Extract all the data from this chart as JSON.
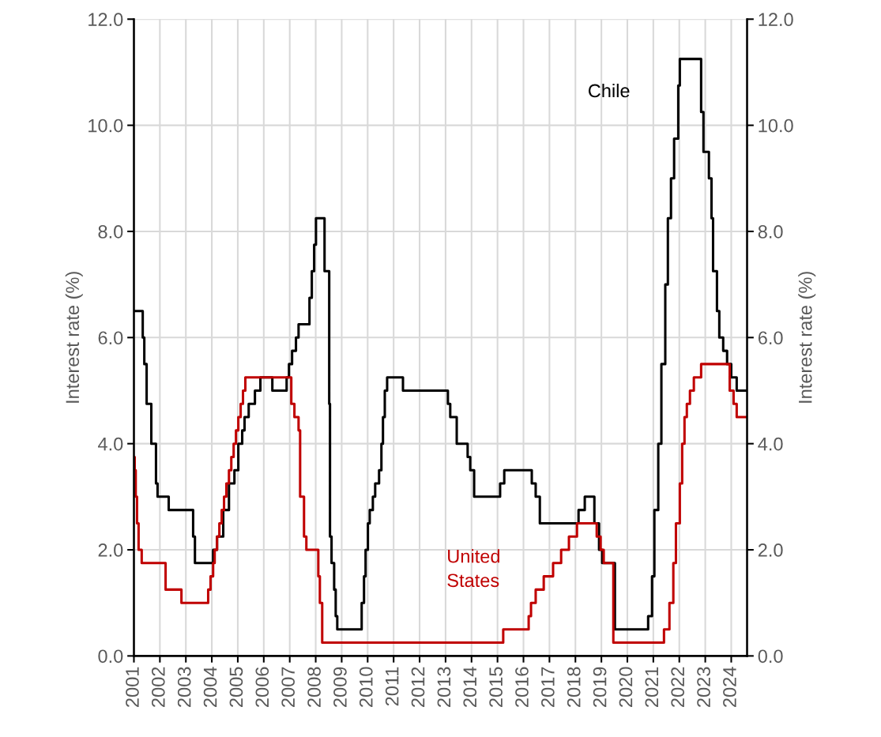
{
  "chart_data": {
    "type": "step",
    "ylabel": "Interest rate (%)",
    "y2label": "Interest rate (%)",
    "xlim": [
      2001,
      2024.61
    ],
    "xticks": [
      2001,
      2002,
      2003,
      2004,
      2005,
      2006,
      2007,
      2008,
      2009,
      2010,
      2011,
      2012,
      2013,
      2014,
      2015,
      2016,
      2017,
      2018,
      2019,
      2020,
      2021,
      2022,
      2023,
      2024
    ],
    "ylim": [
      0,
      12
    ],
    "yticks": [
      {
        "value": 0,
        "label": "0.0"
      },
      {
        "value": 2,
        "label": "2.0"
      },
      {
        "value": 4,
        "label": "4.0"
      },
      {
        "value": 6,
        "label": "6.0"
      },
      {
        "value": 8,
        "label": "8.0"
      },
      {
        "value": 10,
        "label": "10.0"
      },
      {
        "value": 12,
        "label": "12.0"
      }
    ],
    "y2lim": [
      0,
      12
    ],
    "y2ticks": [
      {
        "value": 0,
        "label": "0.0"
      },
      {
        "value": 2,
        "label": "2.0"
      },
      {
        "value": 4,
        "label": "4.0"
      },
      {
        "value": 6,
        "label": "6.0"
      },
      {
        "value": 8,
        "label": "8.0"
      },
      {
        "value": 10,
        "label": "10.0"
      },
      {
        "value": 12,
        "label": "12.0"
      }
    ],
    "grid": true,
    "series": [
      {
        "name": "Chile",
        "color": "#000000",
        "x": [
          2001.0,
          2001.34,
          2001.4,
          2001.49,
          2001.67,
          2001.85,
          2001.91,
          2002.34,
          2003.28,
          2003.35,
          2004.05,
          2004.2,
          2004.44,
          2004.66,
          2004.87,
          2005.02,
          2005.17,
          2005.26,
          2005.42,
          2005.66,
          2005.87,
          2006.33,
          2006.88,
          2006.97,
          2007.09,
          2007.24,
          2007.34,
          2007.76,
          2007.85,
          2007.94,
          2008.01,
          2008.34,
          2008.52,
          2008.55,
          2008.61,
          2008.71,
          2008.77,
          2008.83,
          2009.77,
          2009.86,
          2009.92,
          2010.01,
          2010.08,
          2010.2,
          2010.29,
          2010.44,
          2010.53,
          2010.59,
          2010.66,
          2010.75,
          2011.36,
          2013.09,
          2013.18,
          2013.43,
          2013.85,
          2013.95,
          2014.1,
          2015.1,
          2015.26,
          2016.32,
          2016.47,
          2016.63,
          2018.12,
          2018.36,
          2018.73,
          2018.91,
          2019.03,
          2019.52,
          2020.8,
          2020.95,
          2021.04,
          2021.19,
          2021.31,
          2021.46,
          2021.56,
          2021.68,
          2021.8,
          2021.96,
          2022.02,
          2022.84,
          2022.93,
          2023.14,
          2023.24,
          2023.3,
          2023.45,
          2023.54,
          2023.69,
          2023.84,
          2024.0,
          2024.21,
          2024.61
        ],
        "values": [
          6.5,
          6.0,
          5.5,
          4.75,
          4.0,
          3.25,
          3.0,
          2.75,
          2.25,
          1.75,
          2.0,
          2.25,
          2.75,
          3.25,
          3.5,
          4.0,
          4.25,
          4.5,
          4.75,
          5.0,
          5.25,
          5.0,
          5.25,
          5.5,
          5.75,
          6.0,
          6.25,
          6.75,
          7.25,
          7.75,
          8.25,
          7.25,
          4.75,
          2.25,
          1.75,
          1.25,
          0.75,
          0.5,
          1.0,
          1.5,
          2.0,
          2.5,
          2.75,
          3.0,
          3.25,
          3.5,
          4.0,
          4.5,
          5.0,
          5.25,
          5.0,
          4.75,
          4.5,
          4.0,
          3.75,
          3.5,
          3.0,
          3.25,
          3.5,
          3.25,
          3.0,
          2.5,
          2.75,
          3.0,
          2.5,
          2.0,
          1.75,
          0.5,
          0.75,
          1.5,
          2.75,
          4.0,
          5.5,
          7.0,
          8.25,
          9.0,
          9.75,
          10.75,
          11.25,
          10.25,
          9.5,
          9.0,
          8.25,
          7.25,
          6.5,
          6.0,
          5.75,
          5.5,
          5.25,
          5.0,
          5.0
        ]
      },
      {
        "name": "United States",
        "color": "#c00000",
        "x": [
          2001.0,
          2001.03,
          2001.07,
          2001.12,
          2001.18,
          2001.3,
          2002.22,
          2002.83,
          2003.86,
          2003.95,
          2004.05,
          2004.11,
          2004.2,
          2004.29,
          2004.38,
          2004.47,
          2004.56,
          2004.66,
          2004.75,
          2004.84,
          2004.93,
          2005.02,
          2005.11,
          2005.2,
          2005.29,
          2007.06,
          2007.18,
          2007.34,
          2007.4,
          2007.55,
          2007.64,
          2008.1,
          2008.16,
          2008.25,
          2015.22,
          2016.2,
          2016.29,
          2016.47,
          2016.78,
          2017.14,
          2017.45,
          2017.75,
          2018.06,
          2018.82,
          2018.97,
          2019.09,
          2019.46,
          2021.41,
          2021.62,
          2021.77,
          2021.87,
          2022.02,
          2022.11,
          2022.2,
          2022.29,
          2022.41,
          2022.56,
          2022.84,
          2023.94,
          2024.09,
          2024.21,
          2024.61
        ],
        "values": [
          3.75,
          3.5,
          3.0,
          2.5,
          2.0,
          1.75,
          1.25,
          1.0,
          1.25,
          1.5,
          1.75,
          2.0,
          2.25,
          2.5,
          2.75,
          3.0,
          3.25,
          3.5,
          3.75,
          4.0,
          4.25,
          4.5,
          4.75,
          5.0,
          5.25,
          4.75,
          4.5,
          4.25,
          3.0,
          2.25,
          2.0,
          1.5,
          1.0,
          0.25,
          0.5,
          0.75,
          1.0,
          1.25,
          1.5,
          1.75,
          2.0,
          2.25,
          2.5,
          2.25,
          2.0,
          1.75,
          0.25,
          0.5,
          1.0,
          1.75,
          2.5,
          3.25,
          4.0,
          4.5,
          4.75,
          5.0,
          5.25,
          5.5,
          5.0,
          4.75,
          4.5,
          4.5
        ]
      }
    ]
  }
}
